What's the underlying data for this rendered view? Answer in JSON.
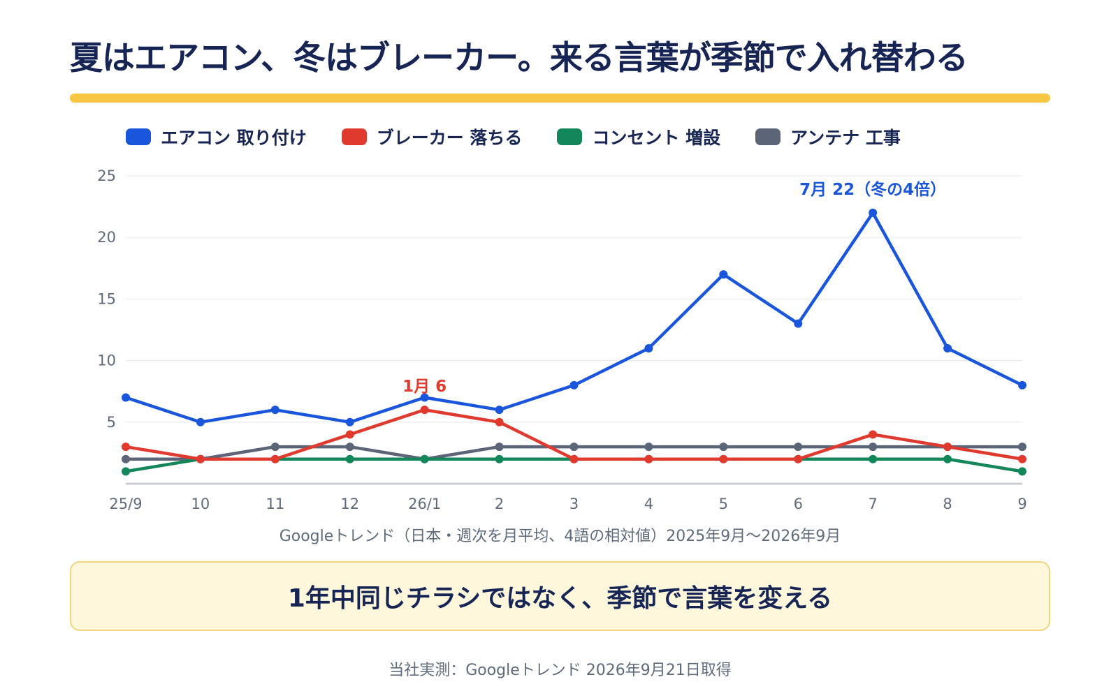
{
  "title": "夏はエアコン、冬はブレーカー。来る言葉が季節で入れ替わる",
  "caption": "Googleトレンド（日本・週次を月平均、4語の相対値）2025年9月〜2026年9月",
  "callout": "1年中同じチラシではなく、季節で言葉を変える",
  "source": "当社実測：Googleトレンド 2026年9月21日取得",
  "colors": {
    "accent": "#f7c744",
    "title": "#172554",
    "grid": "#e6e8ec",
    "axis": "#c8ccd2"
  },
  "chart_data": {
    "type": "line",
    "categories": [
      "25/9",
      "10",
      "11",
      "12",
      "26/1",
      "2",
      "3",
      "4",
      "5",
      "6",
      "7",
      "8",
      "9"
    ],
    "ylim": [
      0,
      25
    ],
    "yticks": [
      5,
      10,
      15,
      20,
      25
    ],
    "grid": true,
    "legend": "top-left",
    "series": [
      {
        "name": "エアコン 取り付け",
        "color": "#1a56db",
        "values": [
          7,
          5,
          6,
          5,
          7,
          6,
          8,
          11,
          17,
          13,
          22,
          11,
          8
        ]
      },
      {
        "name": "ブレーカー 落ちる",
        "color": "#e03a2f",
        "values": [
          3,
          2,
          2,
          4,
          6,
          5,
          2,
          2,
          2,
          2,
          4,
          3,
          2
        ]
      },
      {
        "name": "コンセント 増設",
        "color": "#13875a",
        "values": [
          1,
          2,
          2,
          2,
          2,
          2,
          2,
          2,
          2,
          2,
          2,
          2,
          1
        ]
      },
      {
        "name": "アンテナ 工事",
        "color": "#5c6478",
        "values": [
          2,
          2,
          3,
          3,
          2,
          3,
          3,
          3,
          3,
          3,
          3,
          3,
          3
        ]
      }
    ],
    "annotations": [
      {
        "text": "1月 6",
        "series": 1,
        "index": 4,
        "color": "#e03a2f"
      },
      {
        "text": "7月 22（冬の4倍）",
        "series": 0,
        "index": 10,
        "color": "#1a56db"
      }
    ]
  }
}
